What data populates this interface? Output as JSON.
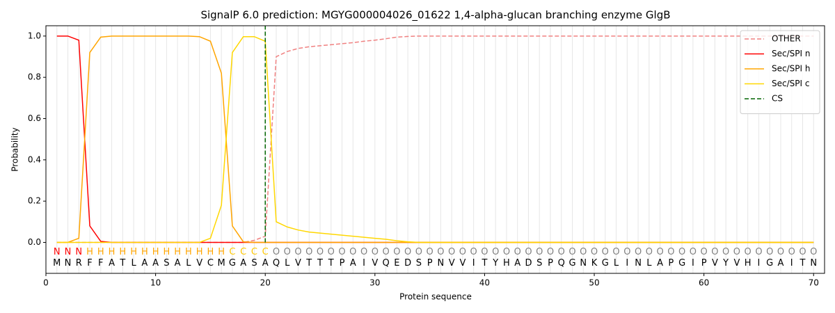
{
  "chart_data": {
    "type": "line",
    "title": "SignalP 6.0 prediction: MGYG000004026_01622 1,4-alpha-glucan branching enzyme GlgB",
    "xlabel": "Protein sequence",
    "ylabel": "Probability",
    "xlim": [
      0,
      71
    ],
    "ylim": [
      -0.15,
      1.05
    ],
    "xticks": [
      0,
      10,
      20,
      30,
      40,
      50,
      60,
      70
    ],
    "yticks": [
      {
        "value": 0,
        "label": "0.0"
      },
      {
        "value": 0.2,
        "label": "0.2"
      },
      {
        "value": 0.4,
        "label": "0.4"
      },
      {
        "value": 0.6,
        "label": "0.6"
      },
      {
        "value": 0.8,
        "label": "0.8"
      },
      {
        "value": 1,
        "label": "1.0"
      }
    ],
    "xgrid": true,
    "legend": "upper right",
    "x": [
      1,
      2,
      3,
      4,
      5,
      6,
      7,
      8,
      9,
      10,
      11,
      12,
      13,
      14,
      15,
      16,
      17,
      18,
      19,
      20,
      21,
      22,
      23,
      24,
      25,
      26,
      27,
      28,
      29,
      30,
      31,
      32,
      33,
      34,
      35,
      36,
      37,
      38,
      39,
      40,
      41,
      42,
      43,
      44,
      45,
      46,
      47,
      48,
      49,
      50,
      51,
      52,
      53,
      54,
      55,
      56,
      57,
      58,
      59,
      60,
      61,
      62,
      63,
      64,
      65,
      66,
      67,
      68,
      69,
      70
    ],
    "residues": [
      "M",
      "N",
      "R",
      "F",
      "F",
      "A",
      "T",
      "L",
      "A",
      "A",
      "S",
      "A",
      "L",
      "V",
      "C",
      "M",
      "G",
      "A",
      "S",
      "A",
      "Q",
      "L",
      "V",
      "T",
      "T",
      "T",
      "P",
      "A",
      "I",
      "V",
      "Q",
      "E",
      "D",
      "S",
      "P",
      "N",
      "V",
      "V",
      "I",
      "T",
      "Y",
      "H",
      "A",
      "D",
      "S",
      "P",
      "Q",
      "G",
      "N",
      "K",
      "G",
      "L",
      "I",
      "N",
      "L",
      "A",
      "P",
      "G",
      "I",
      "P",
      "V",
      "Y",
      "V",
      "H",
      "I",
      "G",
      "A",
      "I",
      "T",
      "N"
    ],
    "region_labels": [
      "N",
      "N",
      "N",
      "H",
      "H",
      "H",
      "H",
      "H",
      "H",
      "H",
      "H",
      "H",
      "H",
      "H",
      "H",
      "H",
      "C",
      "C",
      "C",
      "C",
      "O",
      "O",
      "O",
      "O",
      "O",
      "O",
      "O",
      "O",
      "O",
      "O",
      "O",
      "O",
      "O",
      "O",
      "O",
      "O",
      "O",
      "O",
      "O",
      "O",
      "O",
      "O",
      "O",
      "O",
      "O",
      "O",
      "O",
      "O",
      "O",
      "O",
      "O",
      "O",
      "O",
      "O",
      "O",
      "O",
      "O",
      "O",
      "O",
      "O",
      "O",
      "O",
      "O",
      "O",
      "O",
      "O",
      "O",
      "O",
      "O",
      "O"
    ],
    "region_colors": {
      "N": "#ff0000",
      "H": "#ffa500",
      "C": "#ffc800",
      "O": "#808080"
    },
    "series": [
      {
        "name": "OTHER",
        "color": "#f08080",
        "dashed": true,
        "values": [
          0,
          0,
          0,
          0,
          0,
          0,
          0,
          0,
          0,
          0,
          0,
          0,
          0,
          0,
          0,
          0,
          0,
          0,
          0.01,
          0.03,
          0.9,
          0.925,
          0.94,
          0.948,
          0.953,
          0.958,
          0.963,
          0.968,
          0.975,
          0.98,
          0.987,
          0.995,
          0.998,
          1,
          1,
          1,
          1,
          1,
          1,
          1,
          1,
          1,
          1,
          1,
          1,
          1,
          1,
          1,
          1,
          1,
          1,
          1,
          1,
          1,
          1,
          1,
          1,
          1,
          1,
          1,
          1,
          1,
          1,
          1,
          1,
          1,
          1,
          1,
          1,
          1
        ]
      },
      {
        "name": "Sec/SPI n",
        "color": "#ff0000",
        "dashed": false,
        "values": [
          1,
          1,
          0.98,
          0.08,
          0.005,
          0,
          0,
          0,
          0,
          0,
          0,
          0,
          0,
          0,
          0,
          0,
          0,
          0,
          0,
          0,
          0,
          0,
          0,
          0,
          0,
          0,
          0,
          0,
          0,
          0,
          0,
          0,
          0,
          0,
          0,
          0,
          0,
          0,
          0,
          0,
          0,
          0,
          0,
          0,
          0,
          0,
          0,
          0,
          0,
          0,
          0,
          0,
          0,
          0,
          0,
          0,
          0,
          0,
          0,
          0,
          0,
          0,
          0,
          0,
          0,
          0,
          0,
          0,
          0,
          0
        ]
      },
      {
        "name": "Sec/SPI h",
        "color": "#ffa500",
        "dashed": false,
        "values": [
          0,
          0,
          0.02,
          0.92,
          0.995,
          1,
          1,
          1,
          1,
          1,
          1,
          1,
          1,
          0.997,
          0.975,
          0.82,
          0.08,
          0.003,
          0,
          0,
          0,
          0,
          0,
          0,
          0,
          0,
          0,
          0,
          0,
          0,
          0,
          0,
          0,
          0,
          0,
          0,
          0,
          0,
          0,
          0,
          0,
          0,
          0,
          0,
          0,
          0,
          0,
          0,
          0,
          0,
          0,
          0,
          0,
          0,
          0,
          0,
          0,
          0,
          0,
          0,
          0,
          0,
          0,
          0,
          0,
          0,
          0,
          0,
          0,
          0
        ]
      },
      {
        "name": "Sec/SPI c",
        "color": "#ffd700",
        "dashed": false,
        "values": [
          0,
          0,
          0,
          0,
          0,
          0,
          0,
          0,
          0,
          0,
          0,
          0,
          0,
          0,
          0.02,
          0.18,
          0.92,
          0.997,
          0.997,
          0.975,
          0.1,
          0.075,
          0.06,
          0.05,
          0.045,
          0.04,
          0.035,
          0.03,
          0.025,
          0.02,
          0.015,
          0.008,
          0.003,
          0,
          0,
          0,
          0,
          0,
          0,
          0,
          0,
          0,
          0,
          0,
          0,
          0,
          0,
          0,
          0,
          0,
          0,
          0,
          0,
          0,
          0,
          0,
          0,
          0,
          0,
          0,
          0,
          0,
          0,
          0,
          0,
          0,
          0,
          0,
          0,
          0
        ]
      }
    ],
    "cs": {
      "name": "CS",
      "color": "#006400",
      "x": 20
    }
  }
}
